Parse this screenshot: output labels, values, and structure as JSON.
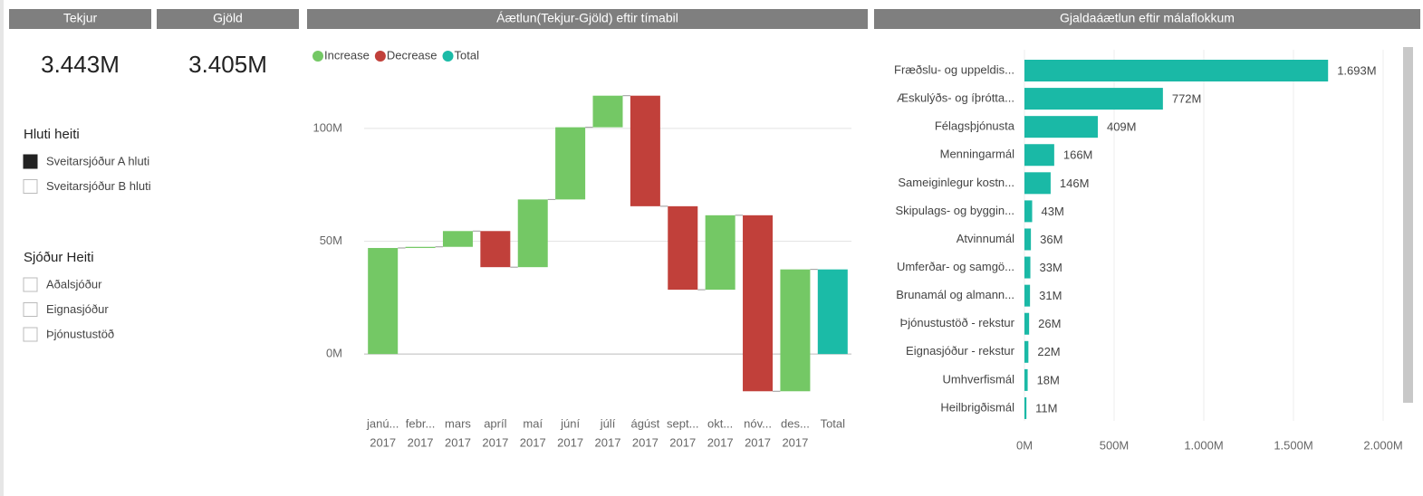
{
  "cards": [
    {
      "title": "Tekjur",
      "value": "3.443M"
    },
    {
      "title": "Gjöld",
      "value": "3.405M"
    }
  ],
  "slicers": [
    {
      "title": "Hluti heiti",
      "items": [
        "Sveitarsjóður A hluti",
        "Sveitarsjóður B hluti"
      ],
      "checked": [
        true,
        false
      ]
    },
    {
      "title": "Sjóður Heiti",
      "items": [
        "Aðalsjóður",
        "Eignasjóður",
        "Þjónustustöð"
      ],
      "checked": [
        false,
        false,
        false
      ]
    }
  ],
  "chart_data": [
    {
      "type": "waterfall",
      "title": "Áætlun(Tekjur-Gjöld) eftir tímabil",
      "legend": [
        {
          "name": "Increase",
          "color": "#74c865"
        },
        {
          "name": "Decrease",
          "color": "#c1403a"
        },
        {
          "name": "Total",
          "color": "#1bbba7"
        }
      ],
      "categories": [
        [
          "janú...",
          "2017"
        ],
        [
          "febr...",
          "2017"
        ],
        [
          "mars",
          "2017"
        ],
        [
          "apríl",
          "2017"
        ],
        [
          "maí",
          "2017"
        ],
        [
          "júní",
          "2017"
        ],
        [
          "júlí",
          "2017"
        ],
        [
          "ágúst",
          "2017"
        ],
        [
          "sept...",
          "2017"
        ],
        [
          "okt...",
          "2017"
        ],
        [
          "nóv...",
          "2017"
        ],
        [
          "des...",
          "2017"
        ],
        [
          "Total"
        ]
      ],
      "values": [
        47,
        0.5,
        7,
        -16,
        30,
        32,
        14,
        -49,
        -37,
        33,
        -78,
        54,
        37.5
      ],
      "measures": [
        "relative",
        "relative",
        "relative",
        "relative",
        "relative",
        "relative",
        "relative",
        "relative",
        "relative",
        "relative",
        "relative",
        "relative",
        "total"
      ],
      "ylim": [
        -20,
        120
      ],
      "yticks": [
        {
          "value": 0,
          "label": "0M"
        },
        {
          "value": 50,
          "label": "50M"
        },
        {
          "value": 100,
          "label": "100M"
        }
      ],
      "grid": true
    },
    {
      "type": "hbar",
      "title": "Gjaldaáætlun eftir málaflokkum",
      "color": "#1ab9a6",
      "categories": [
        "Fræðslu- og uppeldis...",
        "Æskulýðs- og íþrótta...",
        "Félagsþjónusta",
        "Menningarmál",
        "Sameiginlegur kostn...",
        "Skipulags- og byggin...",
        "Atvinnumál",
        "Umferðar- og samgö...",
        "Brunamál og almann...",
        "Þjónustustöð - rekstur",
        "Eignasjóður - rekstur",
        "Umhverfismál",
        "Heilbrigðismál"
      ],
      "values": [
        1693,
        772,
        409,
        166,
        146,
        43,
        36,
        33,
        31,
        26,
        22,
        18,
        11
      ],
      "value_labels": [
        "1.693M",
        "772M",
        "409M",
        "166M",
        "146M",
        "43M",
        "36M",
        "33M",
        "31M",
        "26M",
        "22M",
        "18M",
        "11M"
      ],
      "xlim": [
        0,
        2000
      ],
      "xticks": [
        {
          "value": 0,
          "label": "0M"
        },
        {
          "value": 500,
          "label": "500M"
        },
        {
          "value": 1000,
          "label": "1.000M"
        },
        {
          "value": 1500,
          "label": "1.500M"
        },
        {
          "value": 2000,
          "label": "2.000M"
        }
      ],
      "grid": true
    }
  ]
}
